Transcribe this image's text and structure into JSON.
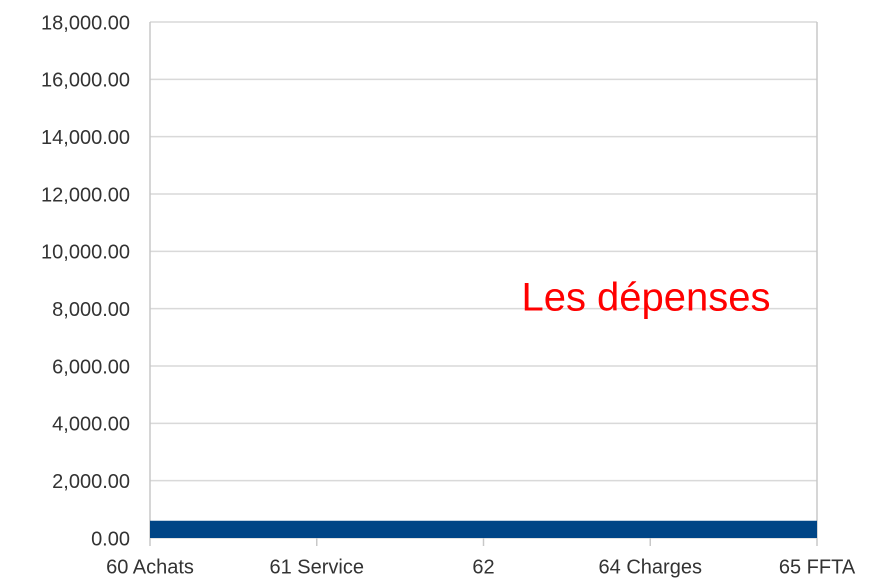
{
  "chart_data": {
    "type": "area",
    "annotation": "Les dépenses",
    "annotation_color": "#ff0000",
    "categories": [
      "60 Achats",
      "61 Service",
      "62",
      "64 Charges",
      "65 FFTA"
    ],
    "series": [
      {
        "name": null,
        "color": "#004586",
        "values": [
          600,
          600,
          600,
          600,
          600
        ]
      }
    ],
    "ylim": [
      0,
      18000
    ],
    "yticks": [
      {
        "value": 0,
        "label": "0.00"
      },
      {
        "value": 2000,
        "label": "2,000.00"
      },
      {
        "value": 4000,
        "label": "4,000.00"
      },
      {
        "value": 6000,
        "label": "6,000.00"
      },
      {
        "value": 8000,
        "label": "8,000.00"
      },
      {
        "value": 10000,
        "label": "10,000.00"
      },
      {
        "value": 12000,
        "label": "12,000.00"
      },
      {
        "value": 14000,
        "label": "14,000.00"
      },
      {
        "value": 16000,
        "label": "16,000.00"
      },
      {
        "value": 18000,
        "label": "18,000.00"
      }
    ],
    "grid": true
  }
}
